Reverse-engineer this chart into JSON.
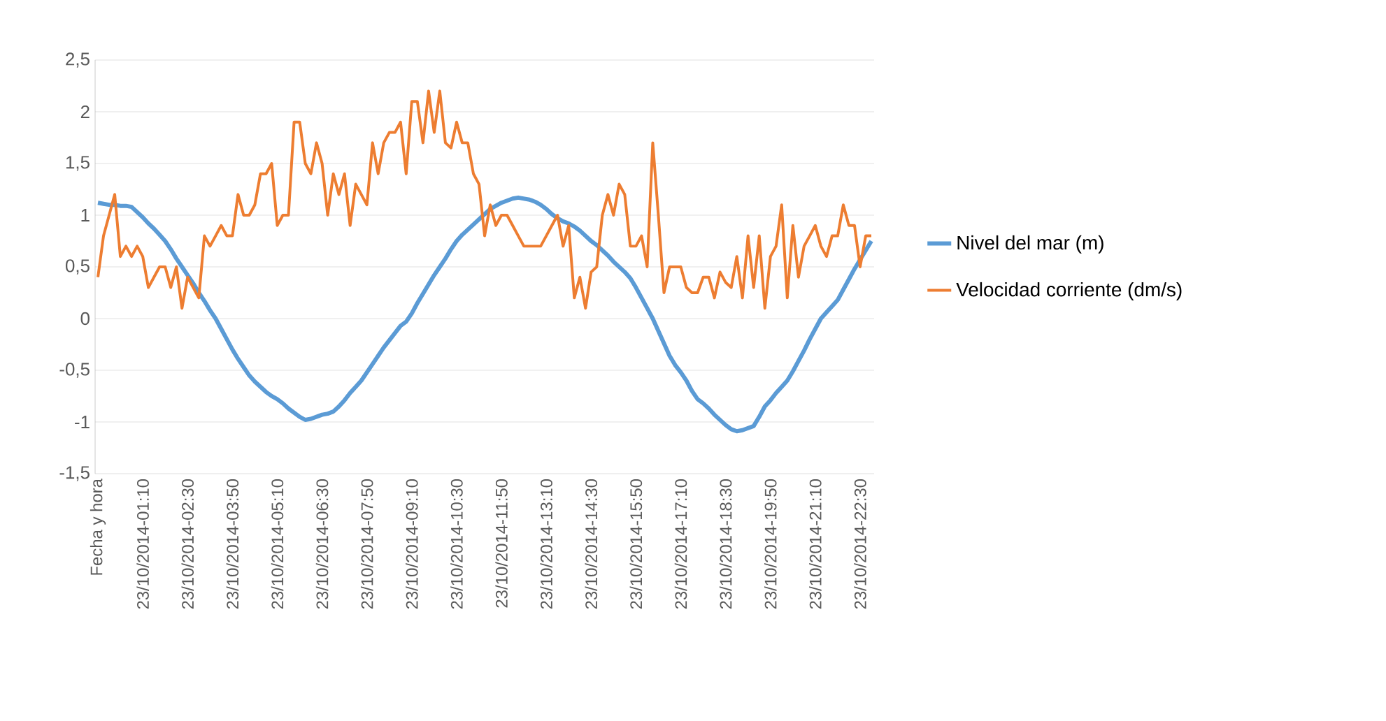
{
  "chart_data": {
    "type": "line",
    "categories": [
      "Fecha y hora",
      null,
      null,
      null,
      null,
      null,
      null,
      null,
      "23/10/2014-01:10",
      null,
      null,
      null,
      null,
      null,
      null,
      null,
      "23/10/2014-02:30",
      null,
      null,
      null,
      null,
      null,
      null,
      null,
      "23/10/2014-03:50",
      null,
      null,
      null,
      null,
      null,
      null,
      null,
      "23/10/2014-05:10",
      null,
      null,
      null,
      null,
      null,
      null,
      null,
      "23/10/2014-06:30",
      null,
      null,
      null,
      null,
      null,
      null,
      null,
      "23/10/2014-07:50",
      null,
      null,
      null,
      null,
      null,
      null,
      null,
      "23/10/2014-09:10",
      null,
      null,
      null,
      null,
      null,
      null,
      null,
      "23/10/2014-10:30",
      null,
      null,
      null,
      null,
      null,
      null,
      null,
      "23/10/2014-11:50",
      null,
      null,
      null,
      null,
      null,
      null,
      null,
      "23/10/2014-13:10",
      null,
      null,
      null,
      null,
      null,
      null,
      null,
      "23/10/2014-14:30",
      null,
      null,
      null,
      null,
      null,
      null,
      null,
      "23/10/2014-15:50",
      null,
      null,
      null,
      null,
      null,
      null,
      null,
      "23/10/2014-17:10",
      null,
      null,
      null,
      null,
      null,
      null,
      null,
      "23/10/2014-18:30",
      null,
      null,
      null,
      null,
      null,
      null,
      null,
      "23/10/2014-19:50",
      null,
      null,
      null,
      null,
      null,
      null,
      null,
      "23/10/2014-21:10",
      null,
      null,
      null,
      null,
      null,
      null,
      null,
      "23/10/2014-22:30",
      null,
      null
    ],
    "series": [
      {
        "name": "Nivel del mar (m)",
        "color": "#5b9bd5",
        "values": [
          1.12,
          1.11,
          1.1,
          1.1,
          1.09,
          1.09,
          1.08,
          1.03,
          0.98,
          0.92,
          0.87,
          0.81,
          0.75,
          0.67,
          0.58,
          0.5,
          0.42,
          0.34,
          0.25,
          0.17,
          0.08,
          0.0,
          -0.1,
          -0.2,
          -0.3,
          -0.39,
          -0.47,
          -0.55,
          -0.61,
          -0.66,
          -0.71,
          -0.75,
          -0.78,
          -0.82,
          -0.87,
          -0.91,
          -0.95,
          -0.98,
          -0.97,
          -0.95,
          -0.93,
          -0.92,
          -0.9,
          -0.85,
          -0.79,
          -0.72,
          -0.66,
          -0.6,
          -0.52,
          -0.44,
          -0.36,
          -0.28,
          -0.21,
          -0.14,
          -0.07,
          -0.03,
          0.05,
          0.15,
          0.24,
          0.33,
          0.42,
          0.5,
          0.58,
          0.67,
          0.75,
          0.81,
          0.86,
          0.91,
          0.96,
          1.01,
          1.06,
          1.09,
          1.12,
          1.14,
          1.16,
          1.17,
          1.16,
          1.15,
          1.13,
          1.1,
          1.06,
          1.01,
          0.97,
          0.94,
          0.92,
          0.89,
          0.85,
          0.8,
          0.75,
          0.71,
          0.66,
          0.61,
          0.55,
          0.5,
          0.45,
          0.39,
          0.3,
          0.2,
          0.1,
          0.0,
          -0.12,
          -0.24,
          -0.36,
          -0.45,
          -0.52,
          -0.6,
          -0.7,
          -0.78,
          -0.82,
          -0.87,
          -0.93,
          -0.98,
          -1.03,
          -1.07,
          -1.09,
          -1.08,
          -1.06,
          -1.04,
          -0.95,
          -0.85,
          -0.79,
          -0.72,
          -0.66,
          -0.6,
          -0.51,
          -0.41,
          -0.31,
          -0.2,
          -0.1,
          0.0,
          0.06,
          0.12,
          0.18,
          0.28,
          0.38,
          0.48,
          0.57,
          0.66,
          0.75
        ]
      },
      {
        "name": "Velocidad corriente (dm/s)",
        "color": "#ed7d31",
        "values": [
          0.4,
          0.8,
          1.0,
          1.2,
          0.6,
          0.7,
          0.6,
          0.7,
          0.6,
          0.3,
          0.4,
          0.5,
          0.5,
          0.3,
          0.5,
          0.1,
          0.4,
          0.3,
          0.2,
          0.8,
          0.7,
          0.8,
          0.9,
          0.8,
          0.8,
          1.2,
          1.0,
          1.0,
          1.1,
          1.4,
          1.4,
          1.5,
          0.9,
          1.0,
          1.0,
          1.9,
          1.9,
          1.5,
          1.4,
          1.7,
          1.5,
          1.0,
          1.4,
          1.2,
          1.4,
          0.9,
          1.3,
          1.2,
          1.1,
          1.7,
          1.4,
          1.7,
          1.8,
          1.8,
          1.9,
          1.4,
          2.1,
          2.1,
          1.7,
          2.2,
          1.8,
          2.2,
          1.7,
          1.65,
          1.9,
          1.7,
          1.7,
          1.4,
          1.3,
          0.8,
          1.1,
          0.9,
          1.0,
          1.0,
          0.9,
          0.8,
          0.7,
          0.7,
          0.7,
          0.7,
          0.8,
          0.9,
          1.0,
          0.7,
          0.9,
          0.2,
          0.4,
          0.1,
          0.45,
          0.5,
          1.0,
          1.2,
          1.0,
          1.3,
          1.2,
          0.7,
          0.7,
          0.8,
          0.5,
          1.7,
          1.0,
          0.25,
          0.5,
          0.5,
          0.5,
          0.3,
          0.25,
          0.25,
          0.4,
          0.4,
          0.2,
          0.45,
          0.35,
          0.3,
          0.6,
          0.2,
          0.8,
          0.3,
          0.8,
          0.1,
          0.6,
          0.7,
          1.1,
          0.2,
          0.9,
          0.4,
          0.7,
          0.8,
          0.9,
          0.7,
          0.6,
          0.8,
          0.8,
          1.1,
          0.9,
          0.9,
          0.5,
          0.8,
          0.8
        ]
      }
    ],
    "ylim": [
      -1.5,
      2.5
    ],
    "yticks": [
      {
        "value": -1.5,
        "label": "-1,5"
      },
      -1,
      {
        "value": -0.5,
        "label": "-0,5"
      },
      0,
      {
        "value": 0.5,
        "label": "0,5"
      },
      1,
      {
        "value": 1.5,
        "label": "1,5"
      },
      2,
      {
        "value": 2.5,
        "label": "2,5"
      }
    ],
    "grid": "y",
    "legend": "right"
  }
}
